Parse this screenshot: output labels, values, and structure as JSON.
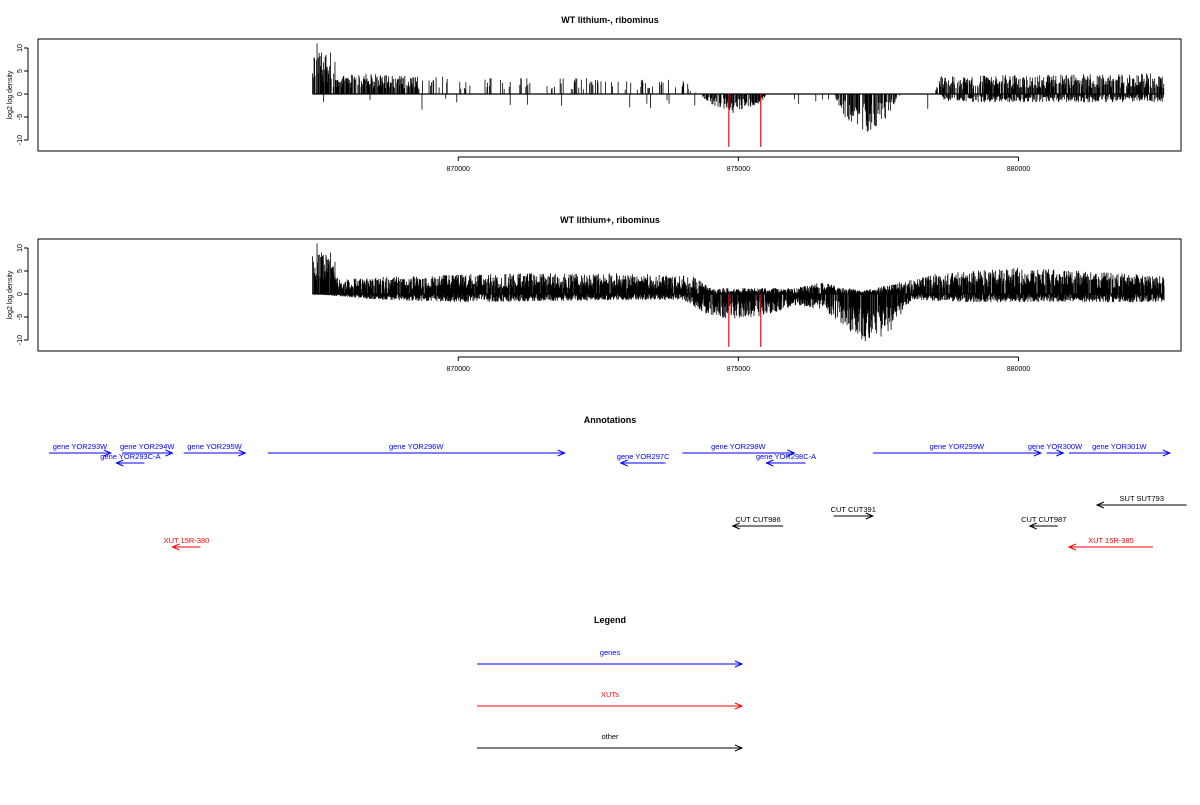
{
  "chart_data": [
    {
      "type": "bar",
      "title": "WT lithium-, ribominus",
      "ylabel": "log2 log density",
      "xlim": [
        862500,
        882900
      ],
      "ylim": [
        -12,
        12
      ],
      "yticks": [
        10,
        5,
        0,
        -5,
        -10
      ],
      "yticklabels": [
        "10",
        "5",
        "0",
        "-5",
        "-10"
      ],
      "xticks": [
        870000,
        875000,
        880000
      ],
      "xticklabels": [
        "870000",
        "875000",
        "880000"
      ],
      "red_markers": [
        874830,
        875400
      ],
      "profile": {
        "plus": [
          [
            867400,
            7
          ],
          [
            867700,
            7
          ],
          [
            867800,
            3
          ],
          [
            868200,
            3.5
          ],
          [
            869200,
            3
          ],
          [
            874000,
            2.5
          ],
          [
            874300,
            0
          ],
          [
            878500,
            0
          ],
          [
            878600,
            3
          ],
          [
            882600,
            3.5
          ]
        ],
        "minus": [
          [
            867400,
            0
          ],
          [
            874300,
            0
          ],
          [
            874500,
            -2
          ],
          [
            874900,
            -3.5
          ],
          [
            875400,
            -2
          ],
          [
            875500,
            0
          ],
          [
            876700,
            0
          ],
          [
            876900,
            -4.5
          ],
          [
            877300,
            -7
          ],
          [
            877600,
            -5
          ],
          [
            877900,
            0
          ],
          [
            878600,
            0
          ],
          [
            878700,
            -1.5
          ],
          [
            882600,
            -1.5
          ]
        ]
      }
    },
    {
      "type": "bar",
      "title": "WT lithium+, ribominus",
      "ylabel": "log2 log density",
      "xlim": [
        862500,
        882900
      ],
      "ylim": [
        -12,
        12
      ],
      "yticks": [
        10,
        5,
        0,
        -5,
        -10
      ],
      "yticklabels": [
        "10",
        "5",
        "0",
        "-5",
        "-10"
      ],
      "xticks": [
        870000,
        875000,
        880000
      ],
      "xticklabels": [
        "870000",
        "875000",
        "880000"
      ],
      "red_markers": [
        874830,
        875400
      ],
      "profile": {
        "plus": [
          [
            867400,
            8
          ],
          [
            867700,
            6
          ],
          [
            867900,
            2.5
          ],
          [
            869000,
            3
          ],
          [
            871000,
            3.5
          ],
          [
            873000,
            3.5
          ],
          [
            874200,
            3
          ],
          [
            874500,
            1
          ],
          [
            876000,
            1
          ],
          [
            876500,
            2
          ],
          [
            877200,
            0.5
          ],
          [
            878600,
            3.5
          ],
          [
            880000,
            4.5
          ],
          [
            882600,
            3
          ]
        ],
        "minus": [
          [
            867400,
            0
          ],
          [
            868500,
            -1
          ],
          [
            870000,
            -1.5
          ],
          [
            874000,
            -1
          ],
          [
            874400,
            -3.5
          ],
          [
            874800,
            -4.5
          ],
          [
            875500,
            -4
          ],
          [
            876000,
            -2
          ],
          [
            876500,
            -3
          ],
          [
            876800,
            -5
          ],
          [
            877300,
            -9.5
          ],
          [
            877700,
            -7
          ],
          [
            878100,
            -1
          ],
          [
            879000,
            -1.5
          ],
          [
            882600,
            -1.5
          ]
        ]
      }
    }
  ],
  "annotations": {
    "title": "Annotations",
    "features": [
      {
        "label": "gene YOR293W",
        "color": "#0000ff",
        "from": 862700,
        "to": 863800,
        "row": 0
      },
      {
        "label": "gene YOR293C-A",
        "color": "#0000ff",
        "from": 864400,
        "to": 863900,
        "row": 1
      },
      {
        "label": "gene YOR294W",
        "color": "#0000ff",
        "from": 864000,
        "to": 864900,
        "row": 0
      },
      {
        "label": "gene YOR295W",
        "color": "#0000ff",
        "from": 865100,
        "to": 866200,
        "row": 0
      },
      {
        "label": "gene YOR296W",
        "color": "#0000ff",
        "from": 866600,
        "to": 871900,
        "row": 0
      },
      {
        "label": "gene YOR297C",
        "color": "#0000ff",
        "from": 873700,
        "to": 872900,
        "row": 1
      },
      {
        "label": "gene YOR298W",
        "color": "#0000ff",
        "from": 874000,
        "to": 876000,
        "row": 0
      },
      {
        "label": "gene YOR298C-A",
        "color": "#0000ff",
        "from": 876200,
        "to": 875500,
        "row": 1
      },
      {
        "label": "gene YOR299W",
        "color": "#0000ff",
        "from": 877400,
        "to": 880400,
        "row": 0
      },
      {
        "label": "gene YOR300W",
        "color": "#0000ff",
        "from": 880500,
        "to": 880800,
        "row": 0
      },
      {
        "label": "gene YOR301W",
        "color": "#0000ff",
        "from": 880900,
        "to": 882700,
        "row": 0
      },
      {
        "label": "SUT SUT793",
        "color": "#000000",
        "from": 883000,
        "to": 881400,
        "row": 2
      },
      {
        "label": "CUT CUT391",
        "color": "#000000",
        "from": 876700,
        "to": 877400,
        "row": 3
      },
      {
        "label": "CUT CUT986",
        "color": "#000000",
        "from": 875800,
        "to": 874900,
        "row": 4
      },
      {
        "label": "CUT CUT987",
        "color": "#000000",
        "from": 880700,
        "to": 880200,
        "row": 4
      },
      {
        "label": "XUT 15R-380",
        "color": "#ff0000",
        "from": 865400,
        "to": 864900,
        "row": 5
      },
      {
        "label": "XUT 15R-385",
        "color": "#ff0000",
        "from": 882400,
        "to": 880900,
        "row": 5
      }
    ]
  },
  "legend": {
    "title": "Legend",
    "items": [
      {
        "label": "genes",
        "color": "#0000ff"
      },
      {
        "label": "XUTs",
        "color": "#ff0000"
      },
      {
        "label": "other",
        "color": "#000000"
      }
    ]
  }
}
